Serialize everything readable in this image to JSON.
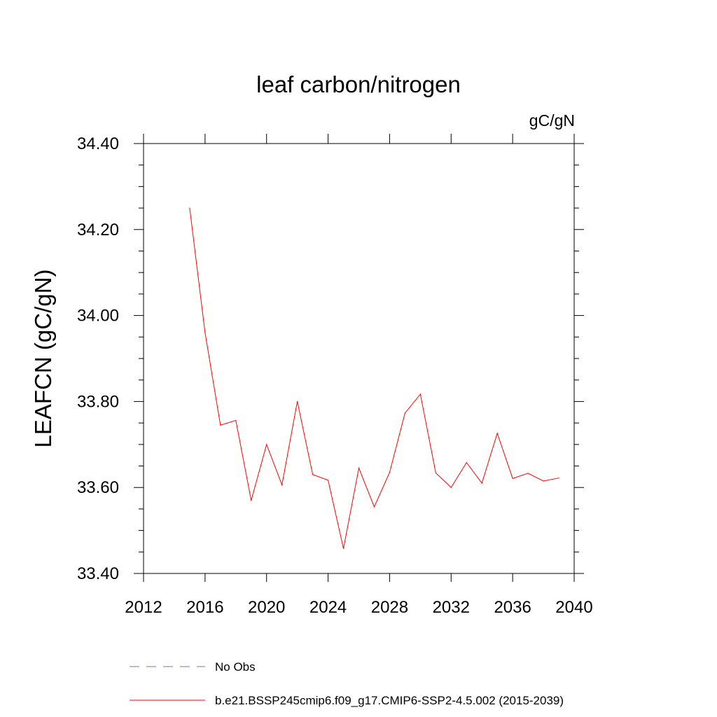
{
  "chart_data": {
    "type": "line",
    "title": "leaf carbon/nitrogen",
    "units_label": "gC/gN",
    "ylabel": "LEAFCN  (gC/gN)",
    "xlabel": "",
    "xlim": [
      2012,
      2040
    ],
    "ylim": [
      33.4,
      34.4
    ],
    "x_ticks": [
      2012,
      2016,
      2020,
      2024,
      2028,
      2032,
      2036,
      2040
    ],
    "x_tick_labels": [
      "2012",
      "2016",
      "2020",
      "2024",
      "2028",
      "2032",
      "2036",
      "2040"
    ],
    "y_ticks": [
      33.4,
      33.6,
      33.8,
      34.0,
      34.2,
      34.4
    ],
    "y_tick_labels": [
      "33.40",
      "33.60",
      "33.80",
      "34.00",
      "34.20",
      "34.40"
    ],
    "grid": false,
    "series": [
      {
        "name": "b.e21.BSSP245cmip6.f09_g17.CMIP6-SSP2-4.5.002 (2015-2039)",
        "color": "#ff0000",
        "style": "solid",
        "x": [
          2015,
          2016,
          2017,
          2018,
          2019,
          2020,
          2021,
          2022,
          2023,
          2024,
          2025,
          2026,
          2027,
          2028,
          2029,
          2030,
          2031,
          2032,
          2033,
          2034,
          2035,
          2036,
          2037,
          2038,
          2039
        ],
        "values": [
          34.25,
          33.96,
          33.745,
          33.756,
          33.57,
          33.7,
          33.606,
          33.8,
          33.63,
          33.617,
          33.458,
          33.645,
          33.555,
          33.635,
          33.773,
          33.817,
          33.634,
          33.6,
          33.658,
          33.61,
          33.726,
          33.621,
          33.633,
          33.615,
          33.622
        ]
      }
    ],
    "legend": [
      {
        "label": "No Obs",
        "color": "#7b6fc9",
        "style": "dashed"
      },
      {
        "label": "b.e21.BSSP245cmip6.f09_g17.CMIP6-SSP2-4.5.002 (2015-2039)",
        "color": "#ff0000",
        "style": "solid"
      }
    ]
  }
}
